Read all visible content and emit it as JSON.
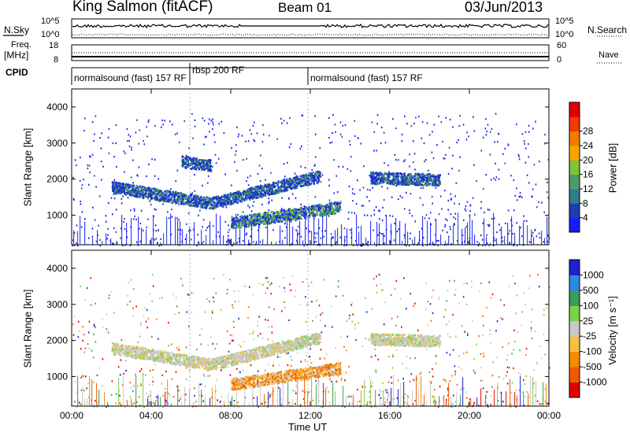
{
  "header": {
    "station": "King Salmon (fitACF)",
    "beam": "Beam 01",
    "date": "03/Jun/2013"
  },
  "top_panels": {
    "nsky_label": "N.Sky",
    "nsearch_label": "N.Search",
    "noise_ticks_left": [
      "10^5",
      "10^0"
    ],
    "noise_ticks_right": [
      "10^5",
      "10^0"
    ],
    "freq_label_line1": "Freq.",
    "freq_label_line2": "[MHz]",
    "freq_ticks": [
      "18",
      "8"
    ],
    "nave_label": "Nave",
    "nave_ticks": [
      "60",
      "0"
    ],
    "cpid_label": "CPID",
    "cpid_segments": [
      {
        "text": "normalsound (fast) 157 RF",
        "start_hour": 0
      },
      {
        "text": "rbsp 200 RF",
        "start_hour": 6
      },
      {
        "text": "normalsound (fast) 157 RF",
        "start_hour": 12
      }
    ]
  },
  "chart_data": [
    {
      "type": "heatmap",
      "panel": "power",
      "ylabel": "Slant Range [km]",
      "ylim": [
        180,
        4500
      ],
      "yticks": [
        "1000",
        "2000",
        "3000",
        "4000"
      ],
      "xlim_hours": [
        0,
        24
      ],
      "colorbar_label": "Power [dB]",
      "colorbar_ticks": [
        "4",
        "8",
        "12",
        "16",
        "20",
        "24",
        "28"
      ],
      "colorscale": [
        "#1a1aff",
        "#1c3fae",
        "#2e7d8a",
        "#4e9b6a",
        "#7cc43a",
        "#f7a800",
        "#f57a00",
        "#ef3a00",
        "#e00000"
      ],
      "echo_bands": [
        {
          "hours": [
            2.0,
            7.0
          ],
          "range_km": [
            1800,
            1350
          ],
          "power_db": 6
        },
        {
          "hours": [
            7.0,
            12.5
          ],
          "range_km": [
            1350,
            2100
          ],
          "power_db": 10
        },
        {
          "hours": [
            8.0,
            13.5
          ],
          "range_km": [
            800,
            1250
          ],
          "power_db": 12
        },
        {
          "hours": [
            5.5,
            7.0
          ],
          "range_km": [
            2500,
            2400
          ],
          "power_db": 5
        },
        {
          "hours": [
            15.0,
            18.5
          ],
          "range_km": [
            2050,
            2000
          ],
          "power_db": 5
        }
      ]
    },
    {
      "type": "heatmap",
      "panel": "velocity",
      "ylabel": "Slant Range [km]",
      "ylim": [
        180,
        4500
      ],
      "yticks": [
        "1000",
        "2000",
        "3000",
        "4000"
      ],
      "xlim_hours": [
        0,
        24
      ],
      "xticks": [
        "00:00",
        "04:00",
        "08:00",
        "12:00",
        "16:00",
        "20:00",
        "00:00"
      ],
      "xlabel": "Time UT",
      "colorbar_label": "Velocity [m s⁻¹]",
      "colorbar_ticks": [
        "1000",
        "500",
        "100",
        "25",
        "-25",
        "-100",
        "-500",
        "-1000"
      ],
      "colorscale": [
        "#2020d0",
        "#2a8ae0",
        "#3a9e58",
        "#7dd04a",
        "#c8c8c8",
        "#f8c040",
        "#f58a00",
        "#f05a00",
        "#e00000"
      ],
      "echo_bands": [
        {
          "hours": [
            2.0,
            7.0
          ],
          "range_km": [
            1800,
            1350
          ],
          "velocity": 0
        },
        {
          "hours": [
            7.0,
            12.5
          ],
          "range_km": [
            1350,
            2100
          ],
          "velocity": 0
        },
        {
          "hours": [
            8.0,
            13.5
          ],
          "range_km": [
            800,
            1250
          ],
          "velocity": -100
        },
        {
          "hours": [
            15.0,
            18.5
          ],
          "range_km": [
            2050,
            2000
          ],
          "velocity": 0
        }
      ]
    }
  ]
}
